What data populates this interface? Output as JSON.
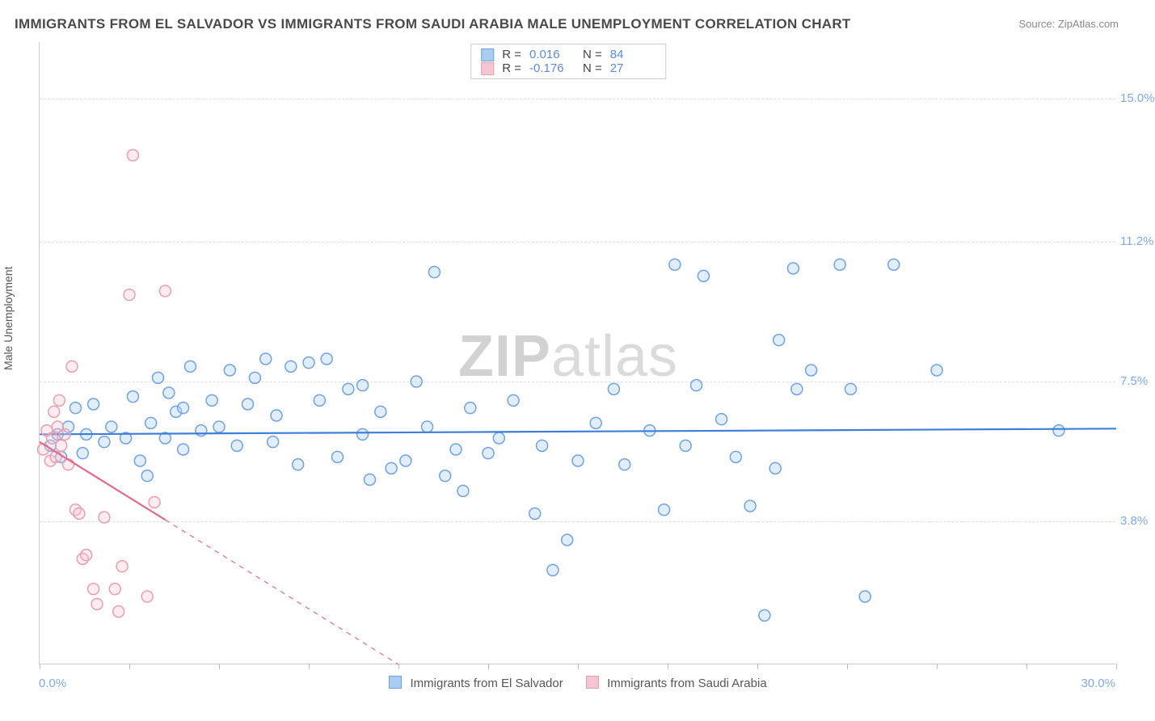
{
  "title": "IMMIGRANTS FROM EL SALVADOR VS IMMIGRANTS FROM SAUDI ARABIA MALE UNEMPLOYMENT CORRELATION CHART",
  "source": "Source: ZipAtlas.com",
  "ylabel": "Male Unemployment",
  "watermark_zip": "ZIP",
  "watermark_atlas": "atlas",
  "chart": {
    "type": "scatter",
    "xlim": [
      0,
      30
    ],
    "ylim": [
      0,
      16.5
    ],
    "x_origin_label": "0.0%",
    "x_end_label": "30.0%",
    "x_ticks": [
      0,
      2.5,
      5,
      7.5,
      10,
      12.5,
      15,
      17.5,
      20,
      22.5,
      25,
      27.5,
      30
    ],
    "y_ticks": [
      {
        "value": 3.8,
        "label": "3.8%"
      },
      {
        "value": 7.5,
        "label": "7.5%"
      },
      {
        "value": 11.2,
        "label": "11.2%"
      },
      {
        "value": 15.0,
        "label": "15.0%"
      }
    ],
    "marker_radius": 7,
    "marker_stroke_width": 1.5,
    "marker_fill_opacity": 0.35,
    "trend_stroke_width": 2.2,
    "grid_color": "#dddddd",
    "background": "#ffffff"
  },
  "series": [
    {
      "key": "el_salvador",
      "label": "Immigrants from El Salvador",
      "color_stroke": "#6fa3e0",
      "color_fill": "#a8cdf1",
      "trend_color": "#3d7edb",
      "trend": {
        "x1": 0,
        "y1": 6.1,
        "x2": 30,
        "y2": 6.25,
        "dash": "none"
      },
      "R": "0.016",
      "N": "84",
      "points": [
        [
          0.3,
          5.8
        ],
        [
          0.5,
          6.1
        ],
        [
          0.6,
          5.5
        ],
        [
          0.8,
          6.3
        ],
        [
          1.0,
          6.8
        ],
        [
          1.2,
          5.6
        ],
        [
          1.3,
          6.1
        ],
        [
          1.5,
          6.9
        ],
        [
          1.8,
          5.9
        ],
        [
          2.0,
          6.3
        ],
        [
          2.4,
          6.0
        ],
        [
          2.6,
          7.1
        ],
        [
          2.8,
          5.4
        ],
        [
          3.1,
          6.4
        ],
        [
          3.3,
          7.6
        ],
        [
          3.5,
          6.0
        ],
        [
          3.6,
          7.2
        ],
        [
          3.8,
          6.7
        ],
        [
          4.0,
          5.7
        ],
        [
          4.2,
          7.9
        ],
        [
          4.5,
          6.2
        ],
        [
          4.8,
          7.0
        ],
        [
          5.0,
          6.3
        ],
        [
          5.3,
          7.8
        ],
        [
          5.5,
          5.8
        ],
        [
          5.8,
          6.9
        ],
        [
          6.0,
          7.6
        ],
        [
          6.3,
          8.1
        ],
        [
          6.6,
          6.6
        ],
        [
          7.0,
          7.9
        ],
        [
          7.2,
          5.3
        ],
        [
          7.5,
          8.0
        ],
        [
          7.8,
          7.0
        ],
        [
          8.0,
          8.1
        ],
        [
          8.3,
          5.5
        ],
        [
          8.6,
          7.3
        ],
        [
          9.0,
          6.1
        ],
        [
          9.2,
          4.9
        ],
        [
          9.5,
          6.7
        ],
        [
          9.8,
          5.2
        ],
        [
          10.2,
          5.4
        ],
        [
          10.5,
          7.5
        ],
        [
          10.8,
          6.3
        ],
        [
          11.0,
          10.4
        ],
        [
          11.3,
          5.0
        ],
        [
          11.6,
          5.7
        ],
        [
          12.0,
          6.8
        ],
        [
          12.5,
          5.6
        ],
        [
          12.8,
          6.0
        ],
        [
          13.2,
          7.0
        ],
        [
          13.8,
          4.0
        ],
        [
          14.0,
          5.8
        ],
        [
          14.3,
          2.5
        ],
        [
          14.7,
          3.3
        ],
        [
          15.0,
          5.4
        ],
        [
          15.5,
          6.4
        ],
        [
          16.0,
          7.3
        ],
        [
          16.3,
          5.3
        ],
        [
          17.0,
          6.2
        ],
        [
          17.4,
          4.1
        ],
        [
          17.7,
          10.6
        ],
        [
          18.0,
          5.8
        ],
        [
          18.3,
          7.4
        ],
        [
          18.5,
          10.3
        ],
        [
          19.0,
          6.5
        ],
        [
          19.4,
          5.5
        ],
        [
          19.8,
          4.2
        ],
        [
          20.2,
          1.3
        ],
        [
          20.5,
          5.2
        ],
        [
          20.6,
          8.6
        ],
        [
          21.0,
          10.5
        ],
        [
          21.1,
          7.3
        ],
        [
          21.5,
          7.8
        ],
        [
          22.3,
          10.6
        ],
        [
          22.6,
          7.3
        ],
        [
          23.0,
          1.8
        ],
        [
          23.8,
          10.6
        ],
        [
          25.0,
          7.8
        ],
        [
          28.4,
          6.2
        ],
        [
          3.0,
          5.0
        ],
        [
          4.0,
          6.8
        ],
        [
          6.5,
          5.9
        ],
        [
          9.0,
          7.4
        ],
        [
          11.8,
          4.6
        ]
      ]
    },
    {
      "key": "saudi_arabia",
      "label": "Immigrants from Saudi Arabia",
      "color_stroke": "#e89fb0",
      "color_fill": "#f5c6d2",
      "trend_color": "#e26b8a",
      "trend": {
        "x1": 0,
        "y1": 5.9,
        "x2": 10,
        "y2": 0,
        "dash": "solid_then_dash",
        "dash_break_x": 3.5
      },
      "R": "-0.176",
      "N": "27",
      "points": [
        [
          0.1,
          5.7
        ],
        [
          0.2,
          6.2
        ],
        [
          0.3,
          5.4
        ],
        [
          0.35,
          6.0
        ],
        [
          0.4,
          6.7
        ],
        [
          0.45,
          5.5
        ],
        [
          0.5,
          6.3
        ],
        [
          0.55,
          7.0
        ],
        [
          0.6,
          5.8
        ],
        [
          0.7,
          6.1
        ],
        [
          0.8,
          5.3
        ],
        [
          0.9,
          7.9
        ],
        [
          1.0,
          4.1
        ],
        [
          1.1,
          4.0
        ],
        [
          1.2,
          2.8
        ],
        [
          1.3,
          2.9
        ],
        [
          1.5,
          2.0
        ],
        [
          1.6,
          1.6
        ],
        [
          1.8,
          3.9
        ],
        [
          2.1,
          2.0
        ],
        [
          2.2,
          1.4
        ],
        [
          2.3,
          2.6
        ],
        [
          2.5,
          9.8
        ],
        [
          2.6,
          13.5
        ],
        [
          3.0,
          1.8
        ],
        [
          3.2,
          4.3
        ],
        [
          3.5,
          9.9
        ]
      ]
    }
  ],
  "legend_top": {
    "rows": [
      {
        "series": "el_salvador",
        "R_label": "R =",
        "N_label": "N ="
      },
      {
        "series": "saudi_arabia",
        "R_label": "R =",
        "N_label": "N ="
      }
    ]
  }
}
